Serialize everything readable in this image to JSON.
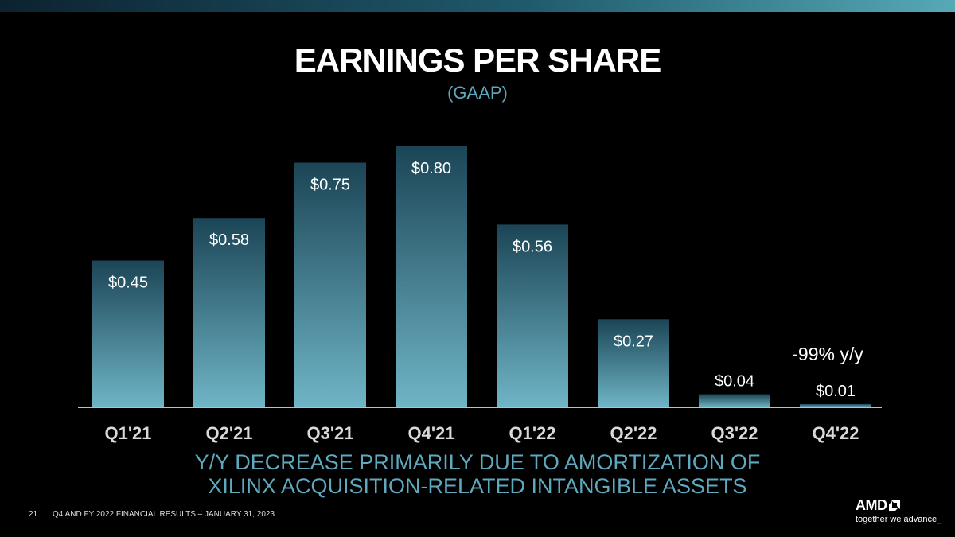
{
  "slide": {
    "title": "EARNINGS PER SHARE",
    "subtitle": "(GAAP)",
    "annotation": "-99% y/y",
    "footnote_line1": "Y/Y DECREASE PRIMARILY DUE TO AMORTIZATION OF",
    "footnote_line2": "XILINX ACQUISITION-RELATED INTANGIBLE ASSETS",
    "page_number": "21",
    "footer_text": "Q4 AND FY 2022 FINANCIAL RESULTS – JANUARY 31, 2023",
    "logo_word": "AMD",
    "logo_tagline": "together we advance_"
  },
  "colors": {
    "background": "#000000",
    "bar_top": "#1b4556",
    "bar_bottom": "#6fb5c6",
    "accent_text": "#5fa9be"
  },
  "chart_data": {
    "type": "bar",
    "title": "EARNINGS PER SHARE",
    "subtitle": "(GAAP)",
    "categories": [
      "Q1'21",
      "Q2'21",
      "Q3'21",
      "Q4'21",
      "Q1'22",
      "Q2'22",
      "Q3'22",
      "Q4'22"
    ],
    "values": [
      0.45,
      0.58,
      0.75,
      0.8,
      0.56,
      0.27,
      0.04,
      0.01
    ],
    "data_labels": [
      "$0.45",
      "$0.58",
      "$0.75",
      "$0.80",
      "$0.56",
      "$0.27",
      "$0.04",
      "$0.01"
    ],
    "ylim": [
      0,
      0.8
    ],
    "grid": false,
    "legend": "none"
  }
}
